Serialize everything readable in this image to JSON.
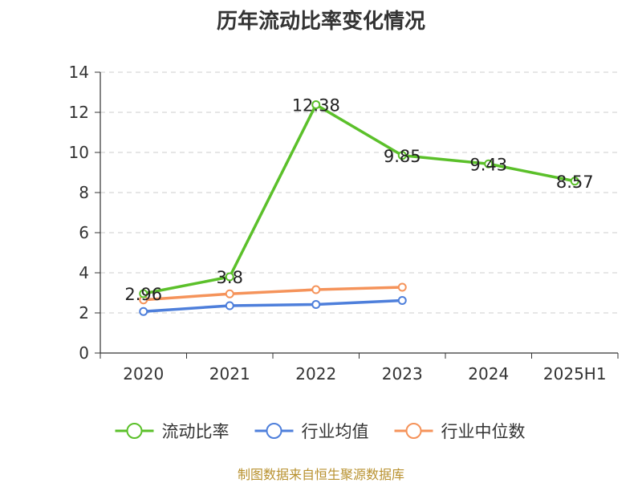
{
  "chart_data": {
    "type": "line",
    "title": "历年流动比率变化情况",
    "categories": [
      "2020",
      "2021",
      "2022",
      "2023",
      "2024",
      "2025H1"
    ],
    "y_ticks": [
      "0",
      "2",
      "4",
      "6",
      "8",
      "10",
      "12",
      "14"
    ],
    "ylim": [
      0,
      14
    ],
    "grid": "horizontal dashed",
    "legend_position": "bottom",
    "series": [
      {
        "name": "流动比率",
        "color": "#5bc02a",
        "values": [
          2.96,
          3.8,
          12.38,
          9.85,
          9.43,
          8.57
        ],
        "labels": [
          "2.96",
          "3.8",
          "12.38",
          "9.85",
          "9.43",
          "8.57"
        ]
      },
      {
        "name": "行业均值",
        "color": "#4e7fdb",
        "values": [
          2.07,
          2.36,
          2.42,
          2.62,
          null,
          null
        ]
      },
      {
        "name": "行业中位数",
        "color": "#f5935a",
        "values": [
          2.65,
          2.95,
          3.16,
          3.28,
          null,
          null
        ]
      }
    ]
  },
  "source_note": "制图数据来自恒生聚源数据库"
}
